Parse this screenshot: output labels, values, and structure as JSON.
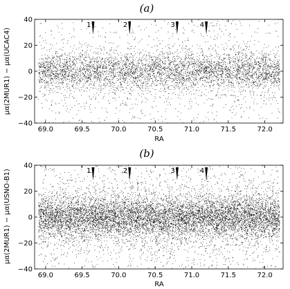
{
  "chart_data": [
    {
      "type": "scatter",
      "title": "(a)",
      "xlabel": "RA",
      "ylabel": "μα(2MUR1) − μα(UCAC4)",
      "xlim": [
        68.85,
        72.25
      ],
      "ylim": [
        -40,
        40
      ],
      "xticks": [
        "69.0",
        "69.5",
        "70.0",
        "70.5",
        "71.0",
        "71.5",
        "72.0"
      ],
      "yticks": [
        "40",
        "20",
        "0",
        "−20",
        "−40"
      ],
      "grid": false,
      "markers": [
        {
          "label": "1",
          "x": 69.65
        },
        {
          "label": "2",
          "x": 70.15
        },
        {
          "label": "3",
          "x": 70.8
        },
        {
          "label": "4",
          "x": 71.2
        }
      ],
      "distribution": {
        "x_range": [
          68.9,
          72.2
        ],
        "y_center": 0,
        "core_spread": 7,
        "halo_spread": 20,
        "density": "medium"
      }
    },
    {
      "type": "scatter",
      "title": "(b)",
      "xlabel": "RA",
      "ylabel": "μα(2MUR1) − μα(USNO-B1)",
      "xlim": [
        68.85,
        72.25
      ],
      "ylim": [
        -40,
        40
      ],
      "xticks": [
        "69.0",
        "69.5",
        "70.0",
        "70.5",
        "71.0",
        "71.5",
        "72.0"
      ],
      "yticks": [
        "40",
        "20",
        "0",
        "−20",
        "−40"
      ],
      "grid": false,
      "markers": [
        {
          "label": "1",
          "x": 69.65
        },
        {
          "label": "2",
          "x": 70.15
        },
        {
          "label": "3",
          "x": 70.8
        },
        {
          "label": "4",
          "x": 71.2
        }
      ],
      "distribution": {
        "x_range": [
          68.9,
          72.2
        ],
        "y_center": 0,
        "core_spread": 8,
        "halo_spread": 22,
        "density": "high"
      }
    }
  ],
  "colors": {
    "points": "#000000",
    "axes": "#000000",
    "background": "#ffffff"
  }
}
